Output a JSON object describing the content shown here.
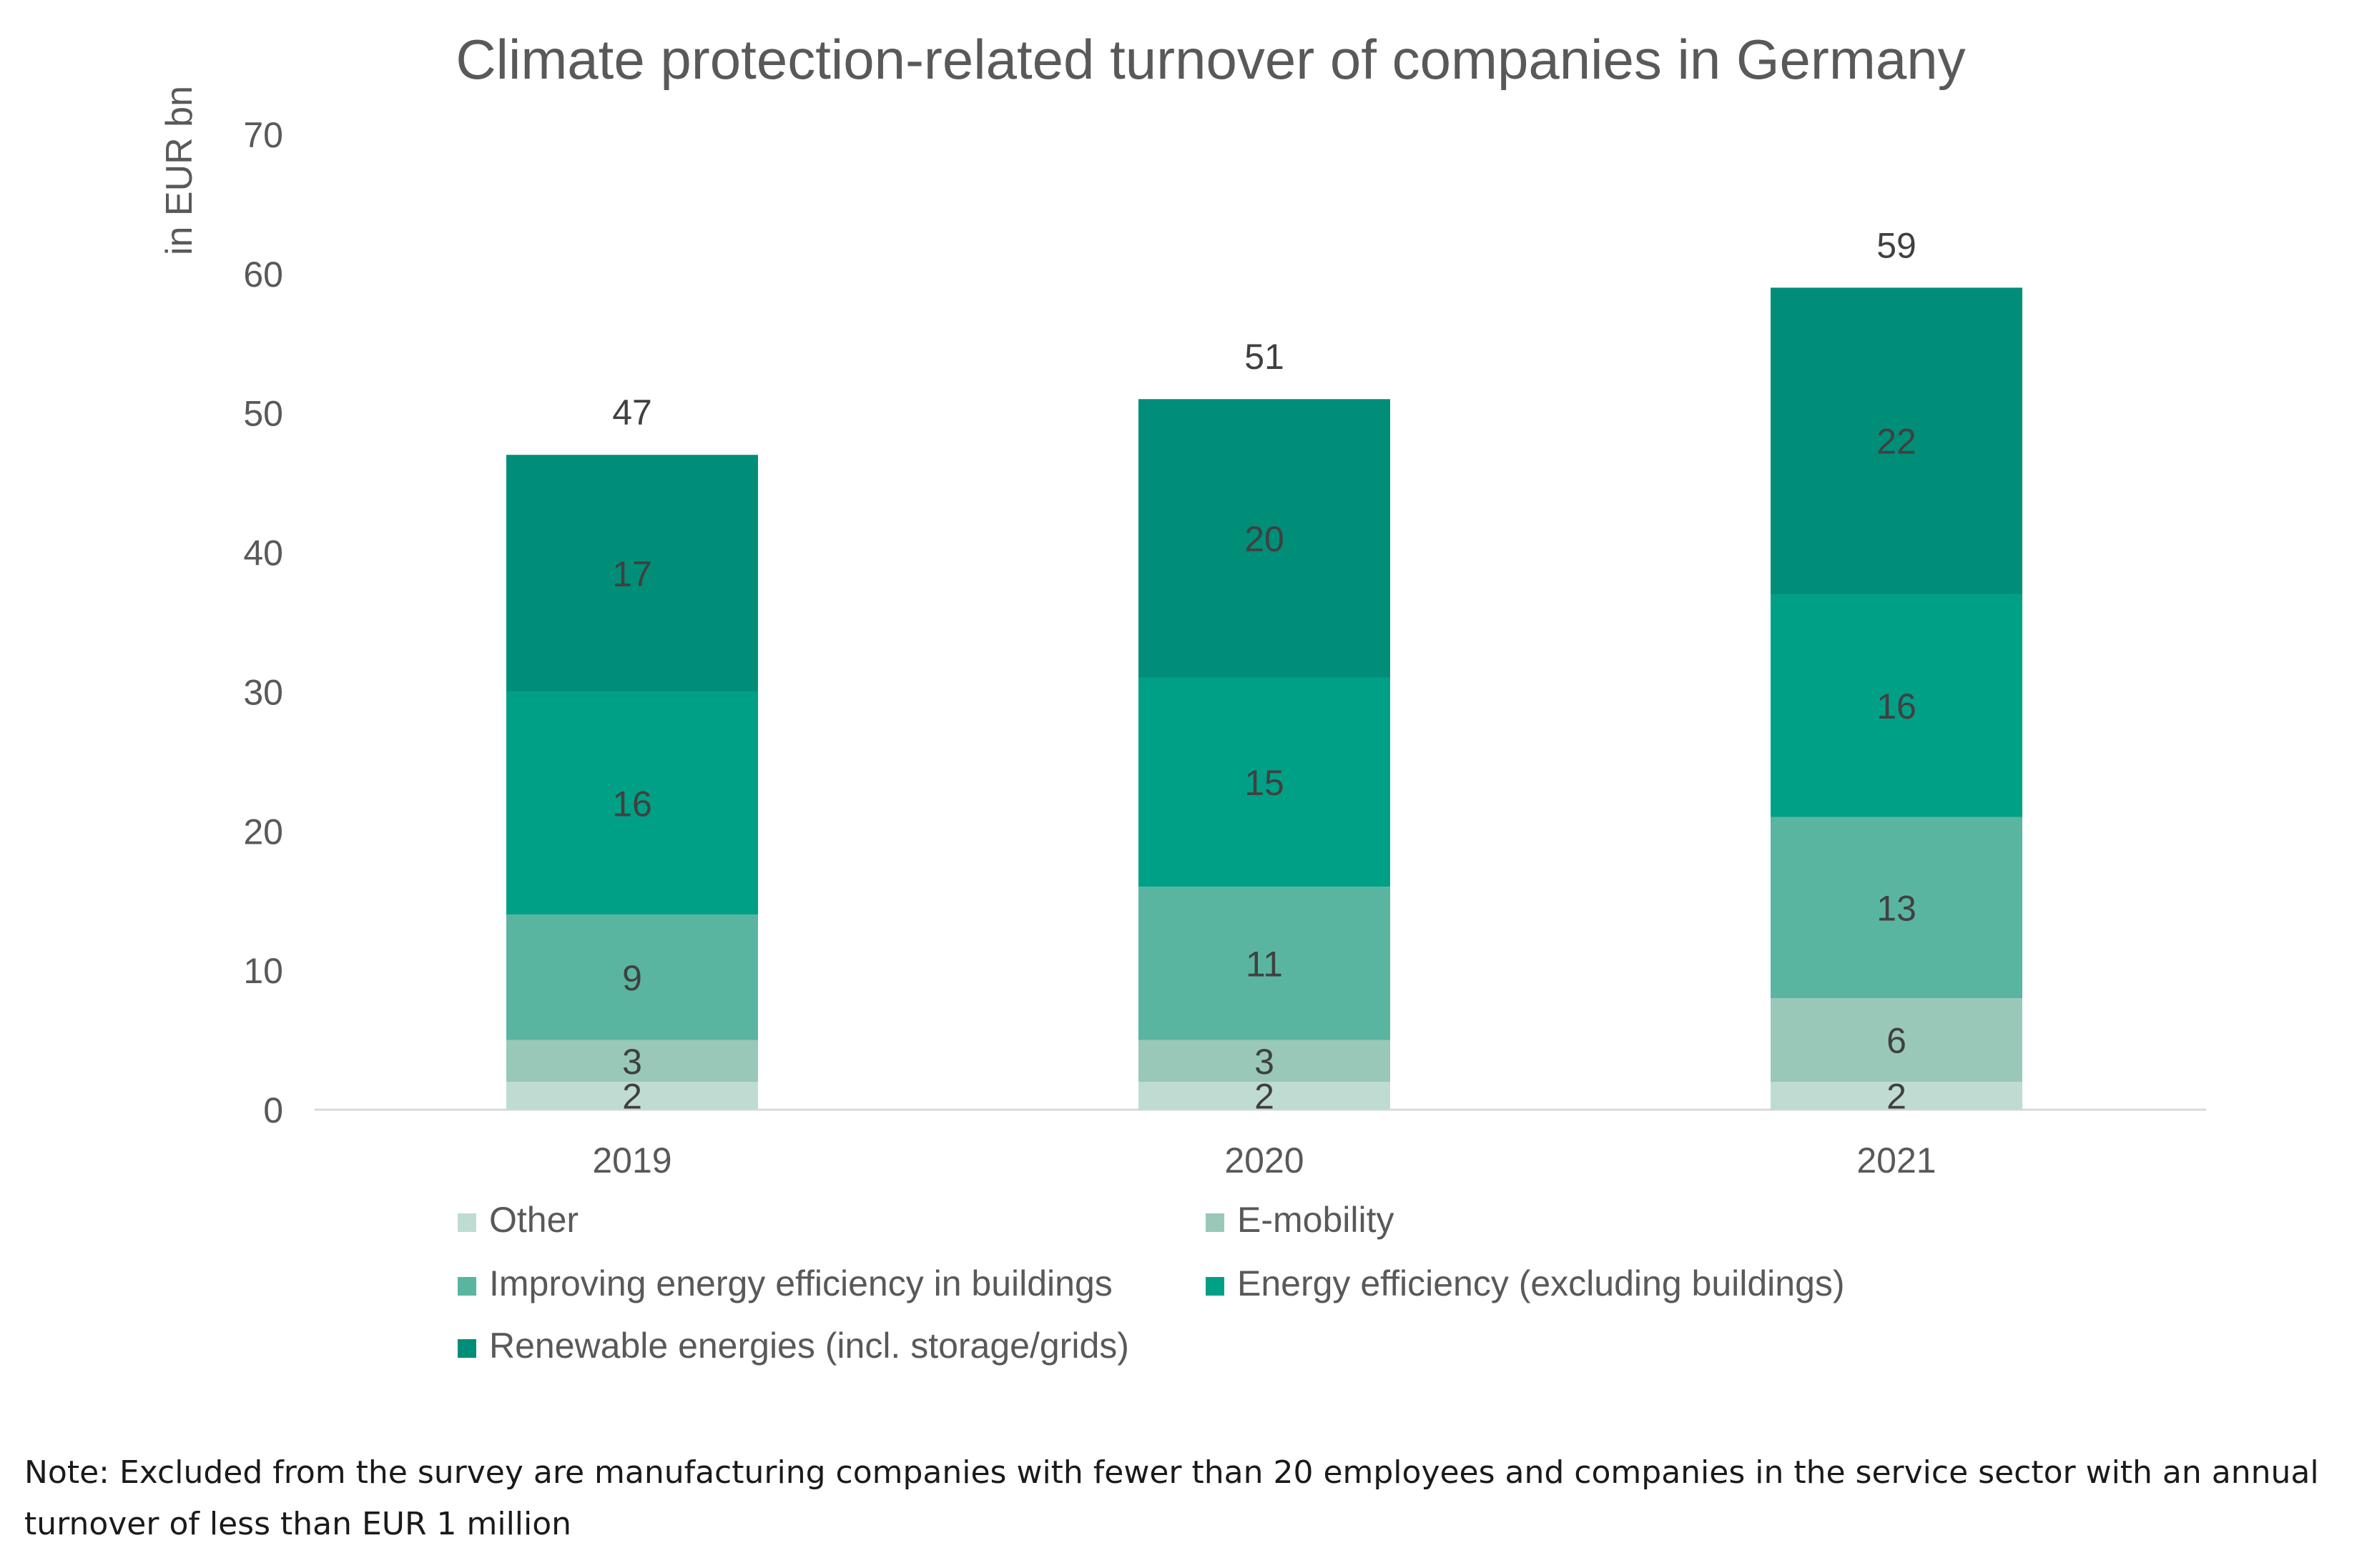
{
  "chart_data": {
    "type": "bar",
    "stacked": true,
    "title": "Climate protection-related turnover of companies in Germany",
    "xlabel": "",
    "ylabel": "in EUR bn",
    "ylim": [
      0,
      70
    ],
    "yticks": [
      0,
      10,
      20,
      30,
      40,
      50,
      60,
      70
    ],
    "grid": false,
    "legend_position": "bottom",
    "categories": [
      "2019",
      "2020",
      "2021"
    ],
    "totals": [
      47,
      51,
      59
    ],
    "series": [
      {
        "name": "Other",
        "color": "#bfdcd2",
        "values": [
          2,
          2,
          2
        ]
      },
      {
        "name": "E-mobility",
        "color": "#99c8b9",
        "values": [
          3,
          3,
          6
        ]
      },
      {
        "name": "Improving energy efficiency in buildings",
        "color": "#5ab5a0",
        "values": [
          9,
          11,
          13
        ]
      },
      {
        "name": "Energy efficiency (excluding buildings)",
        "color": "#00a086",
        "values": [
          16,
          15,
          16
        ]
      },
      {
        "name": "Renewable energies (incl. storage/grids)",
        "color": "#008e79",
        "values": [
          17,
          20,
          22
        ]
      }
    ]
  },
  "note": "Note: Excluded from the survey are manufacturing companies with fewer than 20 employees and companies in the service sector with an annual turnover of less than EUR 1 million"
}
